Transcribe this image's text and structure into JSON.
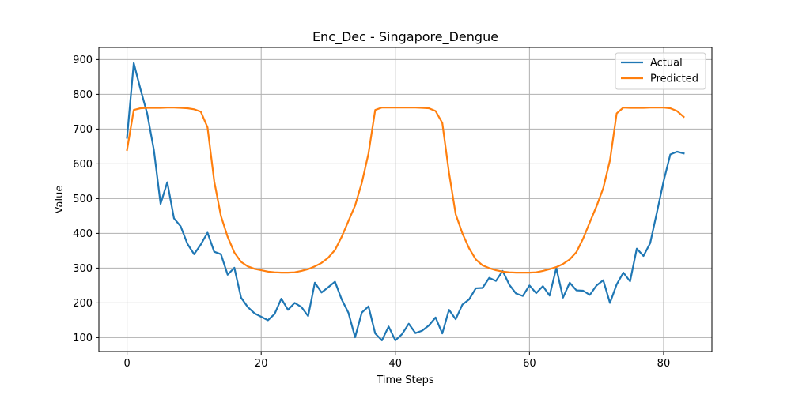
{
  "chart_data": {
    "type": "line",
    "title": "Enc_Dec - Singapore_Dengue",
    "xlabel": "Time Steps",
    "ylabel": "Value",
    "xlim": [
      -4.2,
      87.2
    ],
    "ylim": [
      60,
      935
    ],
    "xticks": [
      0,
      20,
      40,
      60,
      80
    ],
    "yticks": [
      100,
      200,
      300,
      400,
      500,
      600,
      700,
      800,
      900
    ],
    "grid": true,
    "legend_position": "top-right",
    "x": [
      0,
      1,
      2,
      3,
      4,
      5,
      6,
      7,
      8,
      9,
      10,
      11,
      12,
      13,
      14,
      15,
      16,
      17,
      18,
      19,
      20,
      21,
      22,
      23,
      24,
      25,
      26,
      27,
      28,
      29,
      30,
      31,
      32,
      33,
      34,
      35,
      36,
      37,
      38,
      39,
      40,
      41,
      42,
      43,
      44,
      45,
      46,
      47,
      48,
      49,
      50,
      51,
      52,
      53,
      54,
      55,
      56,
      57,
      58,
      59,
      60,
      61,
      62,
      63,
      64,
      65,
      66,
      67,
      68,
      69,
      70,
      71,
      72,
      73,
      74,
      75,
      76,
      77,
      78,
      79,
      80,
      81,
      82,
      83
    ],
    "series": [
      {
        "name": "Actual",
        "color": "#1f77b4",
        "values": [
          675,
          890,
          815,
          745,
          640,
          485,
          547,
          443,
          420,
          370,
          340,
          368,
          402,
          347,
          340,
          281,
          301,
          215,
          188,
          170,
          160,
          150,
          168,
          212,
          180,
          200,
          188,
          162,
          258,
          230,
          245,
          261,
          210,
          172,
          101,
          172,
          190,
          112,
          92,
          132,
          92,
          110,
          140,
          113,
          120,
          135,
          158,
          112,
          180,
          153,
          195,
          210,
          242,
          243,
          272,
          263,
          292,
          252,
          227,
          220,
          250,
          228,
          248,
          221,
          300,
          215,
          258,
          236,
          235,
          223,
          250,
          265,
          200,
          253,
          287,
          262,
          356,
          335,
          372,
          460,
          550,
          627,
          635,
          630
        ]
      },
      {
        "name": "Predicted",
        "color": "#ff7f0e",
        "values": [
          640,
          755,
          760,
          761,
          761,
          761,
          762,
          762,
          761,
          760,
          757,
          750,
          705,
          550,
          450,
          390,
          345,
          318,
          305,
          298,
          294,
          290,
          288,
          287,
          287,
          288,
          292,
          297,
          305,
          315,
          330,
          352,
          390,
          435,
          480,
          545,
          630,
          755,
          762,
          762,
          762,
          762,
          762,
          762,
          761,
          760,
          752,
          718,
          575,
          455,
          400,
          357,
          325,
          308,
          300,
          294,
          290,
          288,
          287,
          287,
          287,
          288,
          292,
          297,
          303,
          312,
          325,
          346,
          385,
          432,
          478,
          530,
          610,
          745,
          762,
          761,
          761,
          761,
          762,
          762,
          762,
          760,
          752,
          735
        ]
      }
    ]
  }
}
